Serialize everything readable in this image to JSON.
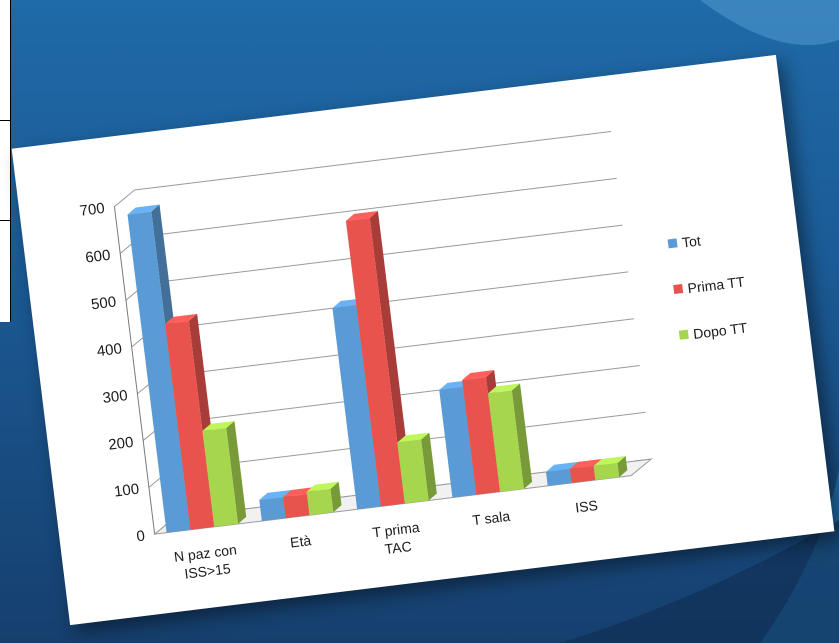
{
  "colors": {
    "tot": "#5b9bd5",
    "prima": "#e8534e",
    "dopo": "#a6d64e"
  },
  "chart_data": {
    "type": "bar",
    "title": "",
    "xlabel": "",
    "ylabel": "",
    "ylim": [
      0,
      700
    ],
    "yticks": [
      0,
      100,
      200,
      300,
      400,
      500,
      600,
      700
    ],
    "grid": true,
    "legend": "right",
    "categories": [
      [
        "N paz con",
        "ISS>15"
      ],
      [
        "Età"
      ],
      [
        "T prima",
        "TAC"
      ],
      [
        "T sala"
      ],
      [
        "ISS"
      ]
    ],
    "series": [
      {
        "name": "Tot",
        "color": "#5b9bd5",
        "values": [
          680,
          45,
          430,
          230,
          30
        ]
      },
      {
        "name": "Prima TT",
        "color": "#e8534e",
        "values": [
          440,
          45,
          610,
          245,
          30
        ]
      },
      {
        "name": "Dopo TT",
        "color": "#a6d64e",
        "values": [
          205,
          50,
          130,
          210,
          30
        ]
      }
    ]
  }
}
